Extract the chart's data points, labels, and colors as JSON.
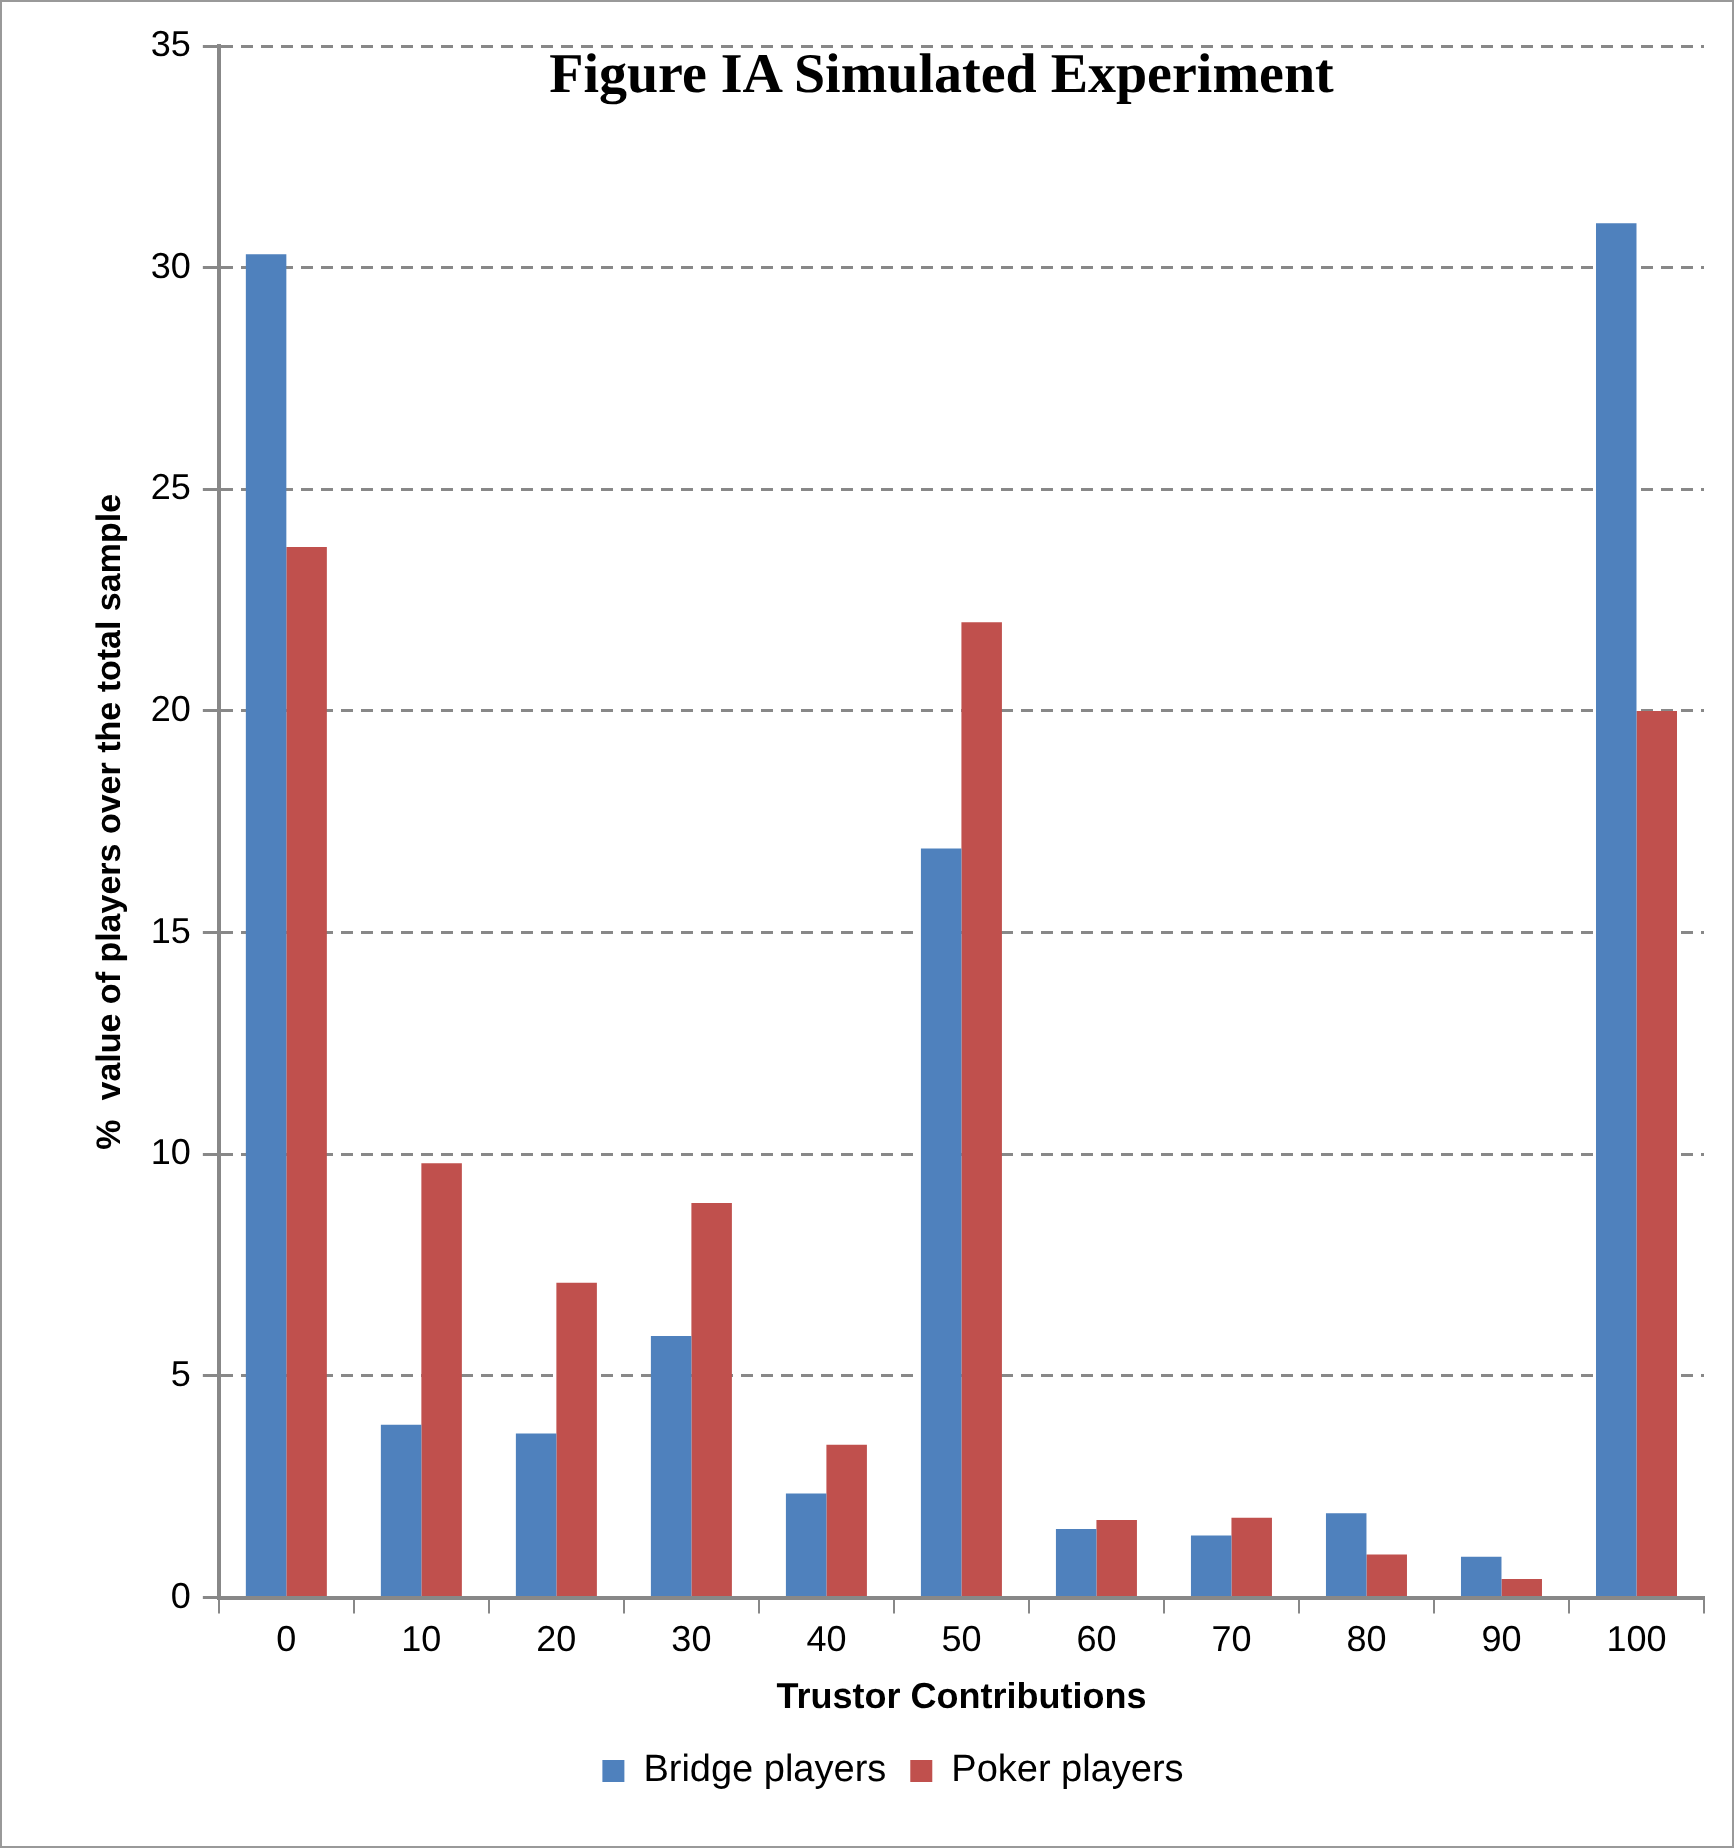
{
  "chart_data": {
    "type": "bar",
    "title": "Figure IA Simulated Experiment",
    "xlabel": "Trustor Contributions",
    "ylabel": "%  value of players over the total sample",
    "categories": [
      "0",
      "10",
      "20",
      "30",
      "40",
      "50",
      "60",
      "70",
      "80",
      "90",
      "100"
    ],
    "series": [
      {
        "name": "Bridge players",
        "color": "#4f81bd",
        "values": [
          30.3,
          3.9,
          3.7,
          5.9,
          2.35,
          16.9,
          1.55,
          1.4,
          1.9,
          0.92,
          31.0
        ]
      },
      {
        "name": "Poker players",
        "color": "#c0504d",
        "values": [
          23.7,
          9.8,
          7.1,
          8.9,
          3.45,
          22.0,
          1.75,
          1.8,
          0.97,
          0.42,
          20.0
        ]
      }
    ],
    "ylim": [
      0,
      35
    ],
    "yticks": [
      0,
      5,
      10,
      15,
      20,
      25,
      30,
      35
    ],
    "grid": "y",
    "legend": "bottom"
  }
}
